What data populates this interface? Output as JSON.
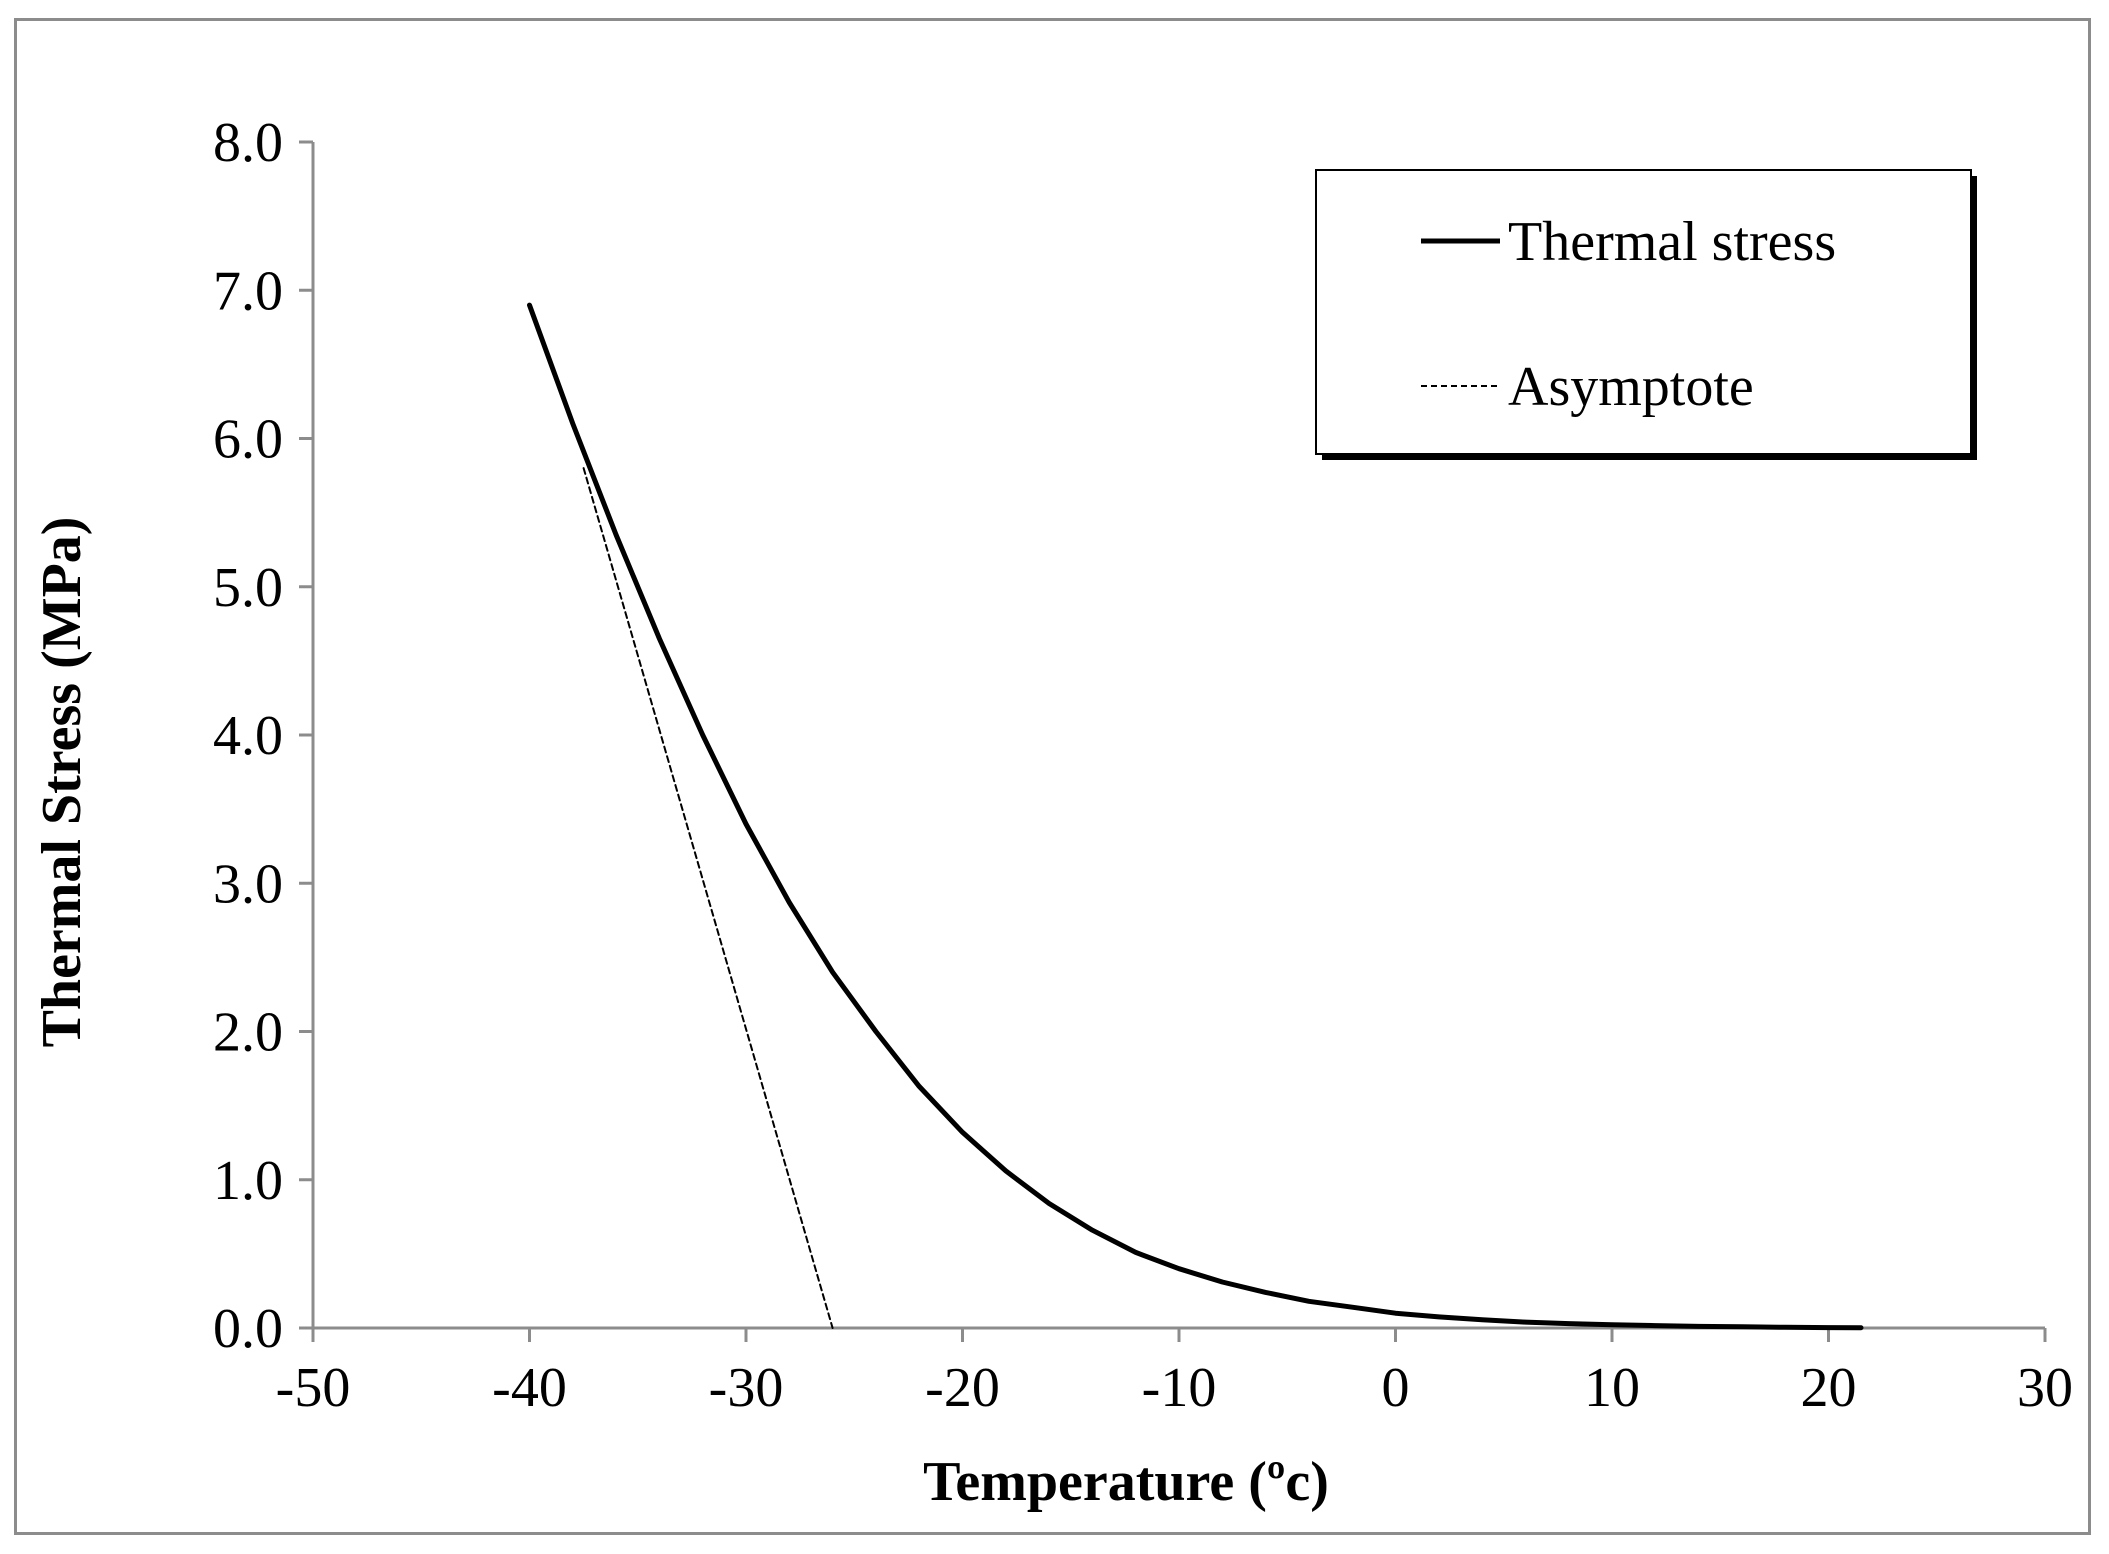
{
  "chart_data": {
    "type": "line",
    "title": "",
    "xlabel": "Temperature (ºc)",
    "ylabel": "Thermal Stress (MPa)",
    "xlim": [
      -50,
      30
    ],
    "ylim": [
      0,
      8
    ],
    "x_ticks": [
      -50,
      -40,
      -30,
      -20,
      -10,
      0,
      10,
      20,
      30
    ],
    "x_tick_labels": [
      "-50",
      "-40",
      "-30",
      "-20",
      "-10",
      "0",
      "10",
      "20",
      "30"
    ],
    "y_ticks": [
      0,
      1,
      2,
      3,
      4,
      5,
      6,
      7,
      8
    ],
    "y_tick_labels": [
      "0.0",
      "1.0",
      "2.0",
      "3.0",
      "4.0",
      "5.0",
      "6.0",
      "7.0",
      "8.0"
    ],
    "grid": false,
    "legend_position": "top-right",
    "series": [
      {
        "name": "Thermal stress",
        "style": "solid",
        "color": "#000000",
        "x": [
          -40,
          -38,
          -36,
          -34,
          -32,
          -30,
          -28,
          -26,
          -24,
          -22,
          -20,
          -18,
          -16,
          -14,
          -12,
          -10,
          -8,
          -6,
          -4,
          -2,
          0,
          2,
          4,
          6,
          8,
          10,
          12,
          14,
          16,
          18,
          20,
          21.5
        ],
        "y": [
          6.9,
          6.1,
          5.35,
          4.65,
          4.0,
          3.4,
          2.87,
          2.4,
          2.0,
          1.63,
          1.32,
          1.06,
          0.84,
          0.66,
          0.51,
          0.4,
          0.31,
          0.24,
          0.18,
          0.14,
          0.1,
          0.075,
          0.055,
          0.04,
          0.03,
          0.022,
          0.016,
          0.011,
          0.008,
          0.005,
          0.003,
          0.002
        ]
      },
      {
        "name": "Asymptote",
        "style": "dashed",
        "color": "#000000",
        "x": [
          -37.5,
          -26
        ],
        "y": [
          5.8,
          0
        ]
      }
    ]
  }
}
